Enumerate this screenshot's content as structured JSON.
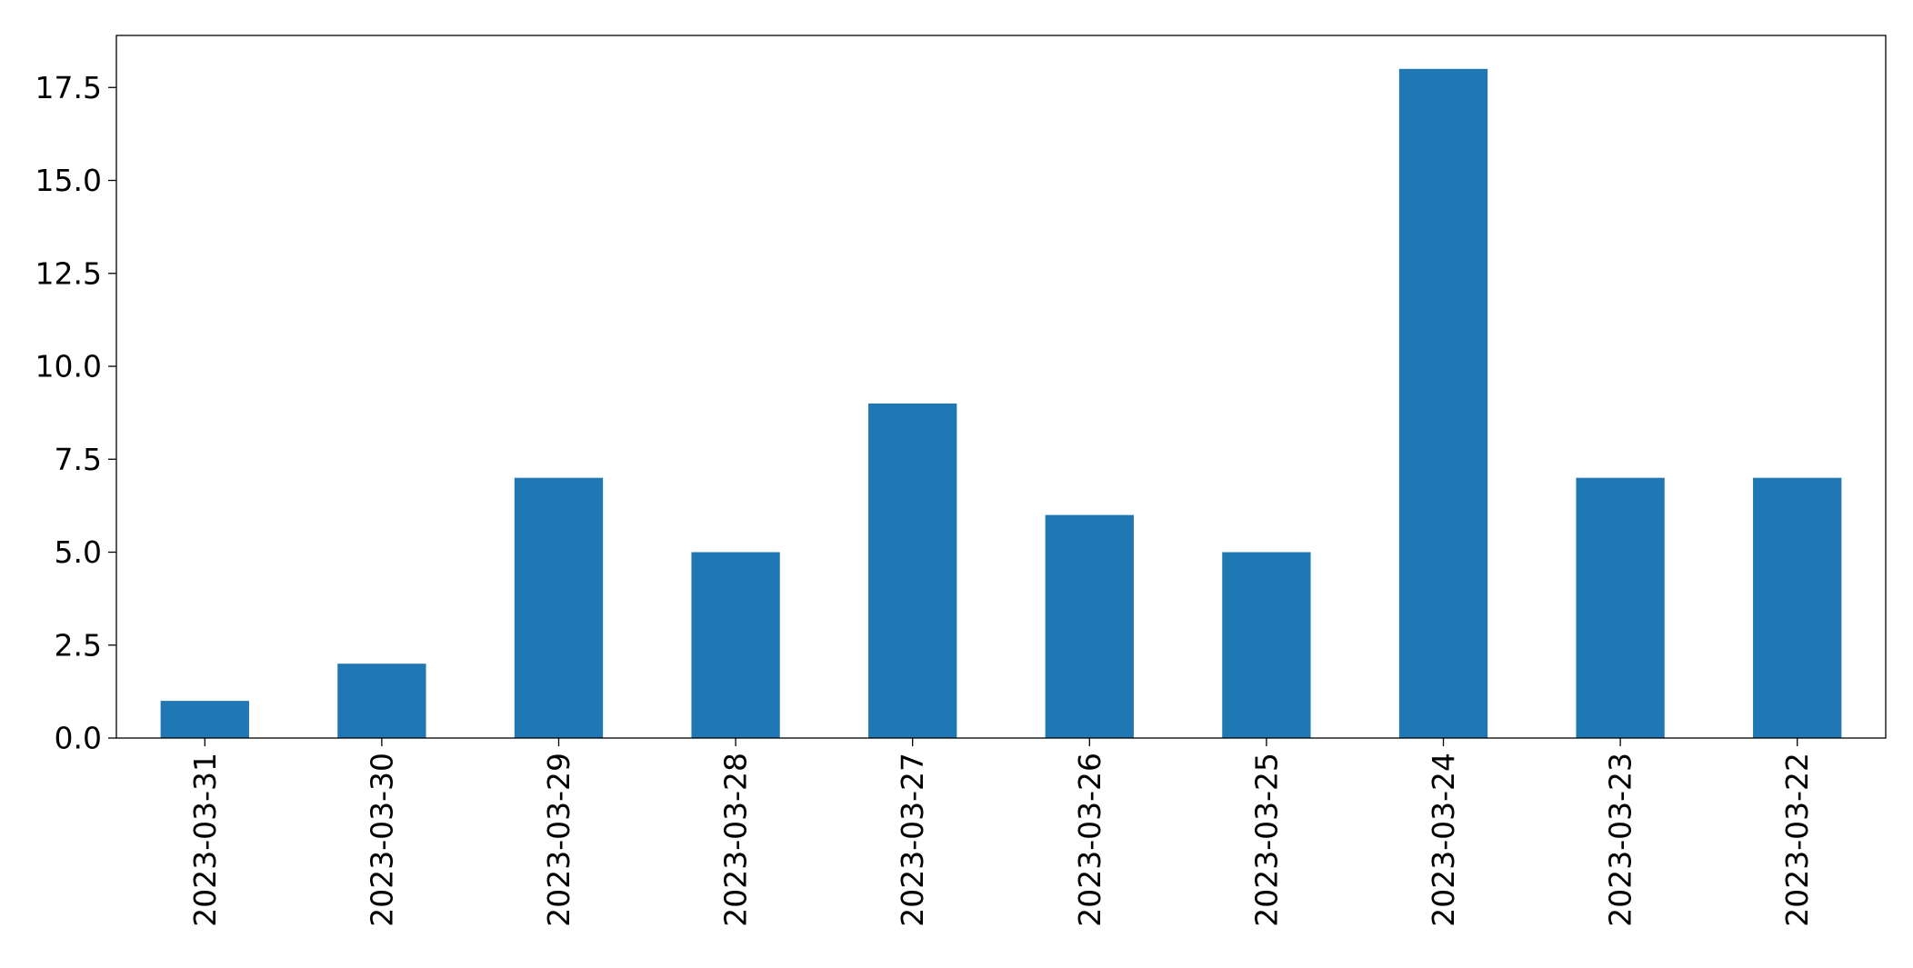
{
  "chart_data": {
    "type": "bar",
    "title": "",
    "xlabel": "",
    "ylabel": "",
    "categories": [
      "2023-03-31",
      "2023-03-30",
      "2023-03-29",
      "2023-03-28",
      "2023-03-27",
      "2023-03-26",
      "2023-03-25",
      "2023-03-24",
      "2023-03-23",
      "2023-03-22"
    ],
    "series": [
      {
        "values": [
          1,
          2,
          7,
          5,
          9,
          6,
          5,
          18,
          7,
          7
        ],
        "color": "#1f77b4"
      }
    ],
    "ylim": [
      0,
      18.9
    ],
    "yticks": [
      "0.0",
      "2.5",
      "5.0",
      "7.5",
      "10.0",
      "12.5",
      "15.0",
      "17.5"
    ],
    "grid": false,
    "legend": "none"
  }
}
